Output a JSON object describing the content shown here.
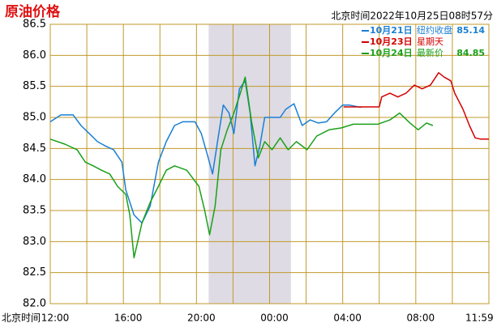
{
  "chart_data": {
    "type": "line",
    "title": "原油价格",
    "subtitle": "北京时间2022年10月25日08时57分",
    "x_axis_label": "北京时间",
    "xlim": [
      0,
      1440
    ],
    "xgrid": [
      0,
      120,
      240,
      360,
      480,
      600,
      720,
      840,
      960,
      1080,
      1200,
      1320,
      1440
    ],
    "xticks": [
      {
        "value": 0,
        "label": "12:00"
      },
      {
        "value": 240,
        "label": "16:00"
      },
      {
        "value": 480,
        "label": "20:00"
      },
      {
        "value": 720,
        "label": "00:00"
      },
      {
        "value": 960,
        "label": "04:00"
      },
      {
        "value": 1200,
        "label": "08:00"
      },
      {
        "value": 1439,
        "label": "11:59"
      }
    ],
    "ylim": [
      82.0,
      86.5
    ],
    "yticks": [
      {
        "value": 82.0,
        "label": "82.0"
      },
      82.5,
      {
        "value": 83.0,
        "label": "83.0"
      },
      83.5,
      {
        "value": 84.0,
        "label": "84.0"
      },
      84.5,
      {
        "value": 85.0,
        "label": "85.0"
      },
      85.5,
      {
        "value": 86.0,
        "label": "86.0"
      },
      86.5
    ],
    "grid": true,
    "grid_color": "#c09a2a",
    "shaded_range": [
      520,
      790
    ],
    "series": [
      {
        "name": "10月21日",
        "note": "纽约收盘",
        "legend_value": 85.14,
        "color": "#1a7fd4",
        "x": [
          0,
          35,
          75,
          101,
          128,
          155,
          181,
          208,
          235,
          248,
          275,
          301,
          328,
          355,
          381,
          408,
          435,
          475,
          496,
          515,
          533,
          549,
          568,
          587,
          603,
          621,
          640,
          656,
          672,
          688,
          704,
          728,
          755,
          773,
          800,
          827,
          853,
          880,
          907,
          933,
          960,
          981,
          1021
        ],
        "values": [
          84.93,
          85.04,
          85.04,
          84.87,
          84.74,
          84.61,
          84.54,
          84.48,
          84.28,
          83.83,
          83.43,
          83.3,
          83.57,
          84.28,
          84.61,
          84.87,
          84.93,
          84.93,
          84.74,
          84.41,
          84.09,
          84.61,
          85.2,
          85.07,
          84.74,
          85.46,
          85.59,
          85.07,
          84.22,
          84.54,
          85.0,
          85.0,
          85.0,
          85.13,
          85.22,
          84.87,
          84.96,
          84.91,
          84.93,
          85.07,
          85.2,
          85.2,
          85.16
        ]
      },
      {
        "name": "10月23日",
        "note": "星期天",
        "color": "#d40000",
        "x": [
          963,
          1080,
          1088,
          1115,
          1141,
          1168,
          1195,
          1221,
          1248,
          1275,
          1293,
          1315,
          1328,
          1355,
          1376,
          1395,
          1413,
          1440
        ],
        "values": [
          85.17,
          85.17,
          85.33,
          85.39,
          85.33,
          85.39,
          85.52,
          85.46,
          85.52,
          85.72,
          85.65,
          85.59,
          85.39,
          85.13,
          84.87,
          84.67,
          84.65,
          84.65
        ]
      },
      {
        "name": "10月24日",
        "note": "最新价",
        "legend_value": 84.85,
        "color": "#1aa01a",
        "x": [
          0,
          48,
          88,
          115,
          141,
          168,
          195,
          221,
          248,
          261,
          275,
          301,
          328,
          355,
          381,
          408,
          448,
          488,
          507,
          523,
          541,
          560,
          581,
          603,
          624,
          640,
          661,
          683,
          704,
          728,
          755,
          781,
          808,
          843,
          875,
          915,
          955,
          995,
          1035,
          1075,
          1115,
          1147,
          1181,
          1208,
          1235,
          1256
        ],
        "values": [
          84.65,
          84.57,
          84.48,
          84.28,
          84.22,
          84.15,
          84.09,
          83.89,
          83.76,
          83.43,
          82.74,
          83.3,
          83.63,
          83.89,
          84.15,
          84.22,
          84.15,
          83.89,
          83.5,
          83.11,
          83.57,
          84.48,
          84.8,
          85.07,
          85.39,
          85.65,
          84.93,
          84.35,
          84.61,
          84.48,
          84.67,
          84.48,
          84.61,
          84.48,
          84.7,
          84.8,
          84.83,
          84.89,
          84.89,
          84.89,
          84.96,
          85.07,
          84.91,
          84.8,
          84.91,
          84.87
        ]
      }
    ]
  }
}
